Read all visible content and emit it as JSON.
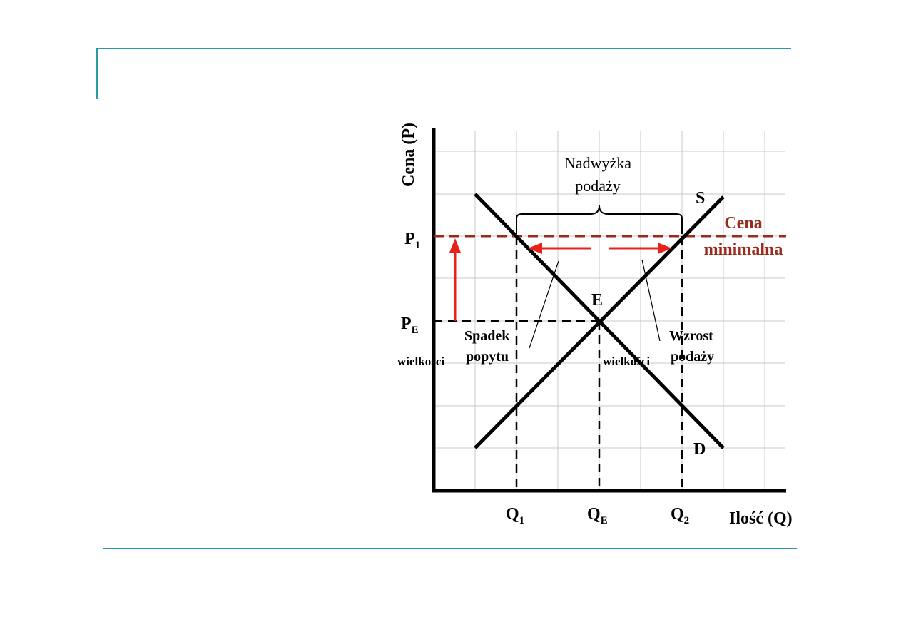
{
  "diagram": {
    "axis_y_label": "Cena (P)",
    "axis_x_label": "Ilość (Q)",
    "price_labels": {
      "p1_main": "P",
      "p1_sub": "1",
      "pe_main": "P",
      "pe_sub": "E"
    },
    "quantity_labels": {
      "q1_main": "Q",
      "q1_sub": "1",
      "qe_main": "Q",
      "qe_sub": "E",
      "q2_main": "Q",
      "q2_sub": "2"
    },
    "curve_labels": {
      "supply": "S",
      "demand": "D",
      "equilibrium": "E"
    },
    "surplus_label": {
      "line1": "Nadwyżka",
      "line2": "podaży"
    },
    "price_floor_label": {
      "line1": "Cena",
      "line2": "minimalna"
    },
    "demand_change": {
      "line1": "Spadek",
      "prefix": "wielkości",
      "line2": "popytu"
    },
    "supply_change": {
      "line1": "Wzrost",
      "prefix": "wielkości",
      "line2": "podaży"
    },
    "colors": {
      "accent_rule": "#2a9aa6",
      "price_floor": "#9a2a1a",
      "arrow": "#e8221b",
      "grid": "#c8c8c8",
      "curve": "#000000"
    }
  }
}
